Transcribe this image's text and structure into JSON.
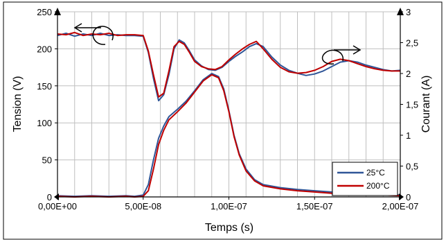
{
  "chart_data": {
    "type": "line",
    "xlabel": "Temps (s)",
    "ylabel_left": "Tension (V)",
    "ylabel_right": "Courant (A)",
    "x_range": [
      0,
      2e-07
    ],
    "y_left_range": [
      0,
      250
    ],
    "y_right_range": [
      0,
      3
    ],
    "x_ticks": [
      "0,00E+00",
      "5,00E-08",
      "1,00E-07",
      "1,50E-07",
      "2,00E-07"
    ],
    "x_tick_values": [
      0,
      5e-08,
      1e-07,
      1.5e-07,
      2e-07
    ],
    "y_left_ticks": [
      "0",
      "50",
      "100",
      "150",
      "200",
      "250"
    ],
    "y_left_tick_values": [
      0,
      50,
      100,
      150,
      200,
      250
    ],
    "y_right_ticks": [
      "0",
      "0,5",
      "1",
      "1,5",
      "2",
      "2,5",
      "3"
    ],
    "y_right_tick_values": [
      0,
      0.5,
      1,
      1.5,
      2,
      2.5,
      3
    ],
    "grid": true,
    "legend_position": "bottom-right",
    "colors": {
      "s25": "#2f5597",
      "s200": "#c00000"
    },
    "series": [
      {
        "name": "25°C",
        "quantity": "voltage",
        "axis": "left",
        "x": [
          0,
          5e-09,
          1e-08,
          1.5e-08,
          2e-08,
          2.5e-08,
          3e-08,
          3.5e-08,
          4e-08,
          4.5e-08,
          5e-08,
          5.3e-08,
          5.6e-08,
          5.9e-08,
          6.2e-08,
          6.5e-08,
          6.8e-08,
          7.1e-08,
          7.4e-08,
          7.7e-08,
          8e-08,
          8.4e-08,
          8.8e-08,
          9.2e-08,
          9.6e-08,
          1e-07,
          1.04e-07,
          1.08e-07,
          1.12e-07,
          1.16e-07,
          1.2e-07,
          1.25e-07,
          1.3e-07,
          1.35e-07,
          1.4e-07,
          1.45e-07,
          1.5e-07,
          1.55e-07,
          1.6e-07,
          1.65e-07,
          1.7e-07,
          1.75e-07,
          1.8e-07,
          1.85e-07,
          1.9e-07,
          1.95e-07,
          2e-07
        ],
        "y": [
          218,
          221,
          217,
          220,
          218,
          221,
          218,
          219,
          218,
          218,
          217,
          195,
          160,
          130,
          138,
          165,
          200,
          212,
          208,
          197,
          185,
          177,
          172,
          171,
          175,
          183,
          190,
          196,
          203,
          207,
          203,
          189,
          178,
          171,
          167,
          164,
          166,
          170,
          176,
          182,
          184,
          182,
          178,
          175,
          172,
          170,
          171
        ]
      },
      {
        "name": "200°C",
        "quantity": "voltage",
        "axis": "left",
        "x": [
          0,
          5e-09,
          1e-08,
          1.5e-08,
          2e-08,
          2.5e-08,
          3e-08,
          3.5e-08,
          4e-08,
          4.5e-08,
          5e-08,
          5.3e-08,
          5.6e-08,
          5.9e-08,
          6.2e-08,
          6.5e-08,
          6.8e-08,
          7.1e-08,
          7.4e-08,
          7.7e-08,
          8e-08,
          8.4e-08,
          8.8e-08,
          9.2e-08,
          9.6e-08,
          1e-07,
          1.04e-07,
          1.08e-07,
          1.12e-07,
          1.16e-07,
          1.2e-07,
          1.25e-07,
          1.3e-07,
          1.35e-07,
          1.4e-07,
          1.45e-07,
          1.5e-07,
          1.55e-07,
          1.6e-07,
          1.65e-07,
          1.7e-07,
          1.75e-07,
          1.8e-07,
          1.85e-07,
          1.9e-07,
          1.95e-07,
          2e-07
        ],
        "y": [
          220,
          219,
          222,
          218,
          220,
          219,
          221,
          218,
          219,
          219,
          218,
          197,
          165,
          135,
          140,
          170,
          203,
          210,
          206,
          195,
          183,
          176,
          173,
          172,
          176,
          185,
          193,
          200,
          206,
          210,
          200,
          186,
          175,
          169,
          167,
          168,
          171,
          176,
          183,
          186,
          184,
          180,
          176,
          173,
          171,
          170,
          170
        ]
      },
      {
        "name": "25°C",
        "quantity": "current",
        "axis": "right",
        "x": [
          0,
          1e-08,
          2e-08,
          3e-08,
          4e-08,
          4.5e-08,
          5e-08,
          5.3e-08,
          5.6e-08,
          5.9e-08,
          6.2e-08,
          6.5e-08,
          7e-08,
          7.5e-08,
          8e-08,
          8.5e-08,
          9e-08,
          9.4e-08,
          9.7e-08,
          1e-07,
          1.03e-07,
          1.06e-07,
          1.1e-07,
          1.15e-07,
          1.2e-07,
          1.3e-07,
          1.4e-07,
          1.5e-07,
          1.6e-07,
          1.7e-07,
          1.8e-07,
          1.9e-07,
          2e-07
        ],
        "y": [
          0.02,
          0.01,
          0.02,
          0.01,
          0.02,
          0.01,
          0.03,
          0.2,
          0.6,
          0.95,
          1.15,
          1.3,
          1.42,
          1.55,
          1.72,
          1.9,
          2.0,
          1.95,
          1.75,
          1.4,
          1.0,
          0.7,
          0.45,
          0.28,
          0.2,
          0.15,
          0.12,
          0.1,
          0.08,
          0.06,
          0.05,
          0.04,
          0.03
        ]
      },
      {
        "name": "200°C",
        "quantity": "current",
        "axis": "right",
        "x": [
          0,
          1e-08,
          2e-08,
          3e-08,
          4e-08,
          4.5e-08,
          5e-08,
          5.3e-08,
          5.6e-08,
          5.9e-08,
          6.2e-08,
          6.5e-08,
          7e-08,
          7.5e-08,
          8e-08,
          8.5e-08,
          9e-08,
          9.4e-08,
          9.7e-08,
          1e-07,
          1.03e-07,
          1.06e-07,
          1.1e-07,
          1.15e-07,
          1.2e-07,
          1.3e-07,
          1.4e-07,
          1.5e-07,
          1.6e-07,
          1.7e-07,
          1.8e-07,
          1.9e-07,
          2e-07
        ],
        "y": [
          0.01,
          0.0,
          0.01,
          0.0,
          0.01,
          0.0,
          0.01,
          0.1,
          0.45,
          0.85,
          1.08,
          1.25,
          1.38,
          1.52,
          1.7,
          1.88,
          1.98,
          1.93,
          1.72,
          1.38,
          0.98,
          0.68,
          0.42,
          0.26,
          0.18,
          0.13,
          0.1,
          0.08,
          0.06,
          0.05,
          0.04,
          0.03,
          0.02
        ]
      }
    ]
  }
}
